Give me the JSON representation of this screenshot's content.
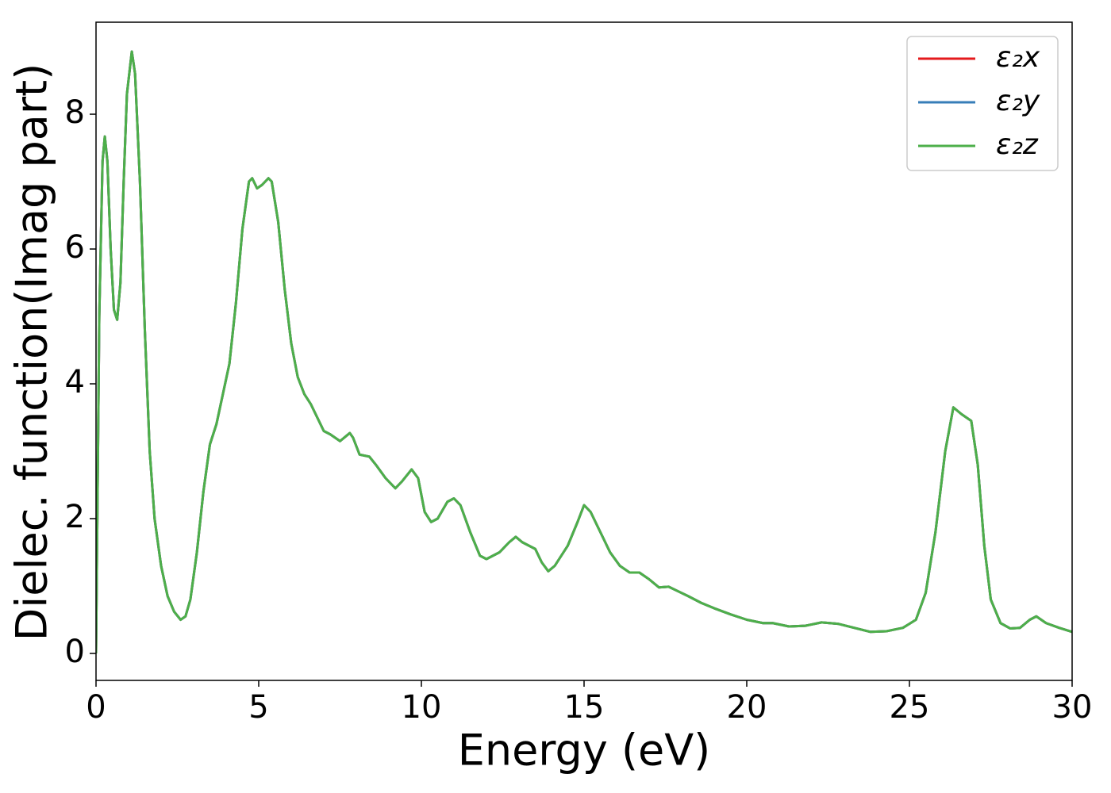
{
  "chart_data": {
    "type": "line",
    "xlabel": "Energy (eV)",
    "ylabel": "Dielec. function(Imag part)",
    "x": [
      0,
      0.05,
      0.1,
      0.2,
      0.27,
      0.35,
      0.45,
      0.55,
      0.65,
      0.75,
      0.85,
      0.95,
      1.1,
      1.2,
      1.35,
      1.5,
      1.65,
      1.8,
      2.0,
      2.2,
      2.4,
      2.6,
      2.75,
      2.9,
      3.1,
      3.3,
      3.5,
      3.7,
      3.9,
      4.1,
      4.3,
      4.5,
      4.7,
      4.8,
      4.95,
      5.1,
      5.3,
      5.4,
      5.6,
      5.8,
      6.0,
      6.2,
      6.4,
      6.6,
      6.8,
      7.0,
      7.2,
      7.5,
      7.8,
      7.9,
      8.1,
      8.4,
      8.6,
      8.9,
      9.2,
      9.4,
      9.7,
      9.9,
      10.1,
      10.3,
      10.5,
      10.8,
      11.0,
      11.2,
      11.5,
      11.8,
      12.0,
      12.4,
      12.7,
      12.9,
      13.1,
      13.3,
      13.5,
      13.7,
      13.9,
      14.1,
      14.3,
      14.5,
      14.8,
      15.0,
      15.2,
      15.5,
      15.8,
      16.1,
      16.4,
      16.7,
      17.0,
      17.3,
      17.6,
      17.9,
      18.2,
      18.6,
      19.0,
      19.5,
      20.0,
      20.5,
      20.8,
      21.3,
      21.8,
      22.3,
      22.8,
      23.3,
      23.8,
      24.3,
      24.8,
      25.2,
      25.5,
      25.8,
      26.1,
      26.35,
      26.6,
      26.9,
      27.1,
      27.3,
      27.5,
      27.8,
      28.1,
      28.4,
      28.7,
      28.9,
      29.2,
      29.6,
      30.0
    ],
    "series": [
      {
        "name": "ε₂x",
        "color": "#e41a1c",
        "values": [
          0,
          2.5,
          5.0,
          7.3,
          7.67,
          7.3,
          6.0,
          5.1,
          4.95,
          5.5,
          7.0,
          8.3,
          8.93,
          8.6,
          7.0,
          4.8,
          3.0,
          2.0,
          1.3,
          0.85,
          0.62,
          0.5,
          0.55,
          0.8,
          1.5,
          2.4,
          3.1,
          3.4,
          3.85,
          4.3,
          5.2,
          6.3,
          7.0,
          7.05,
          6.9,
          6.95,
          7.05,
          7.0,
          6.4,
          5.4,
          4.6,
          4.1,
          3.85,
          3.7,
          3.5,
          3.3,
          3.25,
          3.15,
          3.27,
          3.2,
          2.95,
          2.92,
          2.8,
          2.6,
          2.45,
          2.55,
          2.73,
          2.6,
          2.1,
          1.95,
          2.0,
          2.25,
          2.3,
          2.2,
          1.8,
          1.45,
          1.4,
          1.5,
          1.65,
          1.73,
          1.65,
          1.6,
          1.55,
          1.35,
          1.22,
          1.3,
          1.45,
          1.6,
          1.95,
          2.2,
          2.1,
          1.8,
          1.5,
          1.3,
          1.2,
          1.2,
          1.1,
          0.98,
          0.99,
          0.92,
          0.85,
          0.75,
          0.67,
          0.58,
          0.5,
          0.45,
          0.45,
          0.4,
          0.41,
          0.46,
          0.44,
          0.38,
          0.32,
          0.33,
          0.38,
          0.5,
          0.9,
          1.8,
          3.0,
          3.65,
          3.55,
          3.45,
          2.8,
          1.6,
          0.8,
          0.45,
          0.37,
          0.38,
          0.5,
          0.55,
          0.45,
          0.38,
          0.32
        ]
      },
      {
        "name": "ε₂y",
        "color": "#377eb8",
        "values": [
          0,
          2.5,
          5.0,
          7.3,
          7.67,
          7.3,
          6.0,
          5.1,
          4.95,
          5.5,
          7.0,
          8.3,
          8.93,
          8.6,
          7.0,
          4.8,
          3.0,
          2.0,
          1.3,
          0.85,
          0.62,
          0.5,
          0.55,
          0.8,
          1.5,
          2.4,
          3.1,
          3.4,
          3.85,
          4.3,
          5.2,
          6.3,
          7.0,
          7.05,
          6.9,
          6.95,
          7.05,
          7.0,
          6.4,
          5.4,
          4.6,
          4.1,
          3.85,
          3.7,
          3.5,
          3.3,
          3.25,
          3.15,
          3.27,
          3.2,
          2.95,
          2.92,
          2.8,
          2.6,
          2.45,
          2.55,
          2.73,
          2.6,
          2.1,
          1.95,
          2.0,
          2.25,
          2.3,
          2.2,
          1.8,
          1.45,
          1.4,
          1.5,
          1.65,
          1.73,
          1.65,
          1.6,
          1.55,
          1.35,
          1.22,
          1.3,
          1.45,
          1.6,
          1.95,
          2.2,
          2.1,
          1.8,
          1.5,
          1.3,
          1.2,
          1.2,
          1.1,
          0.98,
          0.99,
          0.92,
          0.85,
          0.75,
          0.67,
          0.58,
          0.5,
          0.45,
          0.45,
          0.4,
          0.41,
          0.46,
          0.44,
          0.38,
          0.32,
          0.33,
          0.38,
          0.5,
          0.9,
          1.8,
          3.0,
          3.65,
          3.55,
          3.45,
          2.8,
          1.6,
          0.8,
          0.45,
          0.37,
          0.38,
          0.5,
          0.55,
          0.45,
          0.38,
          0.32
        ]
      },
      {
        "name": "ε₂z",
        "color": "#4daf4a",
        "values": [
          0,
          2.5,
          5.0,
          7.3,
          7.67,
          7.3,
          6.0,
          5.1,
          4.95,
          5.5,
          7.0,
          8.3,
          8.93,
          8.6,
          7.0,
          4.8,
          3.0,
          2.0,
          1.3,
          0.85,
          0.62,
          0.5,
          0.55,
          0.8,
          1.5,
          2.4,
          3.1,
          3.4,
          3.85,
          4.3,
          5.2,
          6.3,
          7.0,
          7.05,
          6.9,
          6.95,
          7.05,
          7.0,
          6.4,
          5.4,
          4.6,
          4.1,
          3.85,
          3.7,
          3.5,
          3.3,
          3.25,
          3.15,
          3.27,
          3.2,
          2.95,
          2.92,
          2.8,
          2.6,
          2.45,
          2.55,
          2.73,
          2.6,
          2.1,
          1.95,
          2.0,
          2.25,
          2.3,
          2.2,
          1.8,
          1.45,
          1.4,
          1.5,
          1.65,
          1.73,
          1.65,
          1.6,
          1.55,
          1.35,
          1.22,
          1.3,
          1.45,
          1.6,
          1.95,
          2.2,
          2.1,
          1.8,
          1.5,
          1.3,
          1.2,
          1.2,
          1.1,
          0.98,
          0.99,
          0.92,
          0.85,
          0.75,
          0.67,
          0.58,
          0.5,
          0.45,
          0.45,
          0.4,
          0.41,
          0.46,
          0.44,
          0.38,
          0.32,
          0.33,
          0.38,
          0.5,
          0.9,
          1.8,
          3.0,
          3.65,
          3.55,
          3.45,
          2.8,
          1.6,
          0.8,
          0.45,
          0.37,
          0.38,
          0.5,
          0.55,
          0.45,
          0.38,
          0.32
        ]
      }
    ],
    "xlim": [
      0,
      30
    ],
    "xticks": [
      0,
      5,
      10,
      15,
      20,
      25,
      30
    ],
    "ylim": [
      -0.4,
      9.365
    ],
    "yticks": [
      0,
      2,
      4,
      6,
      8
    ],
    "grid": false,
    "legend": "upper right"
  }
}
